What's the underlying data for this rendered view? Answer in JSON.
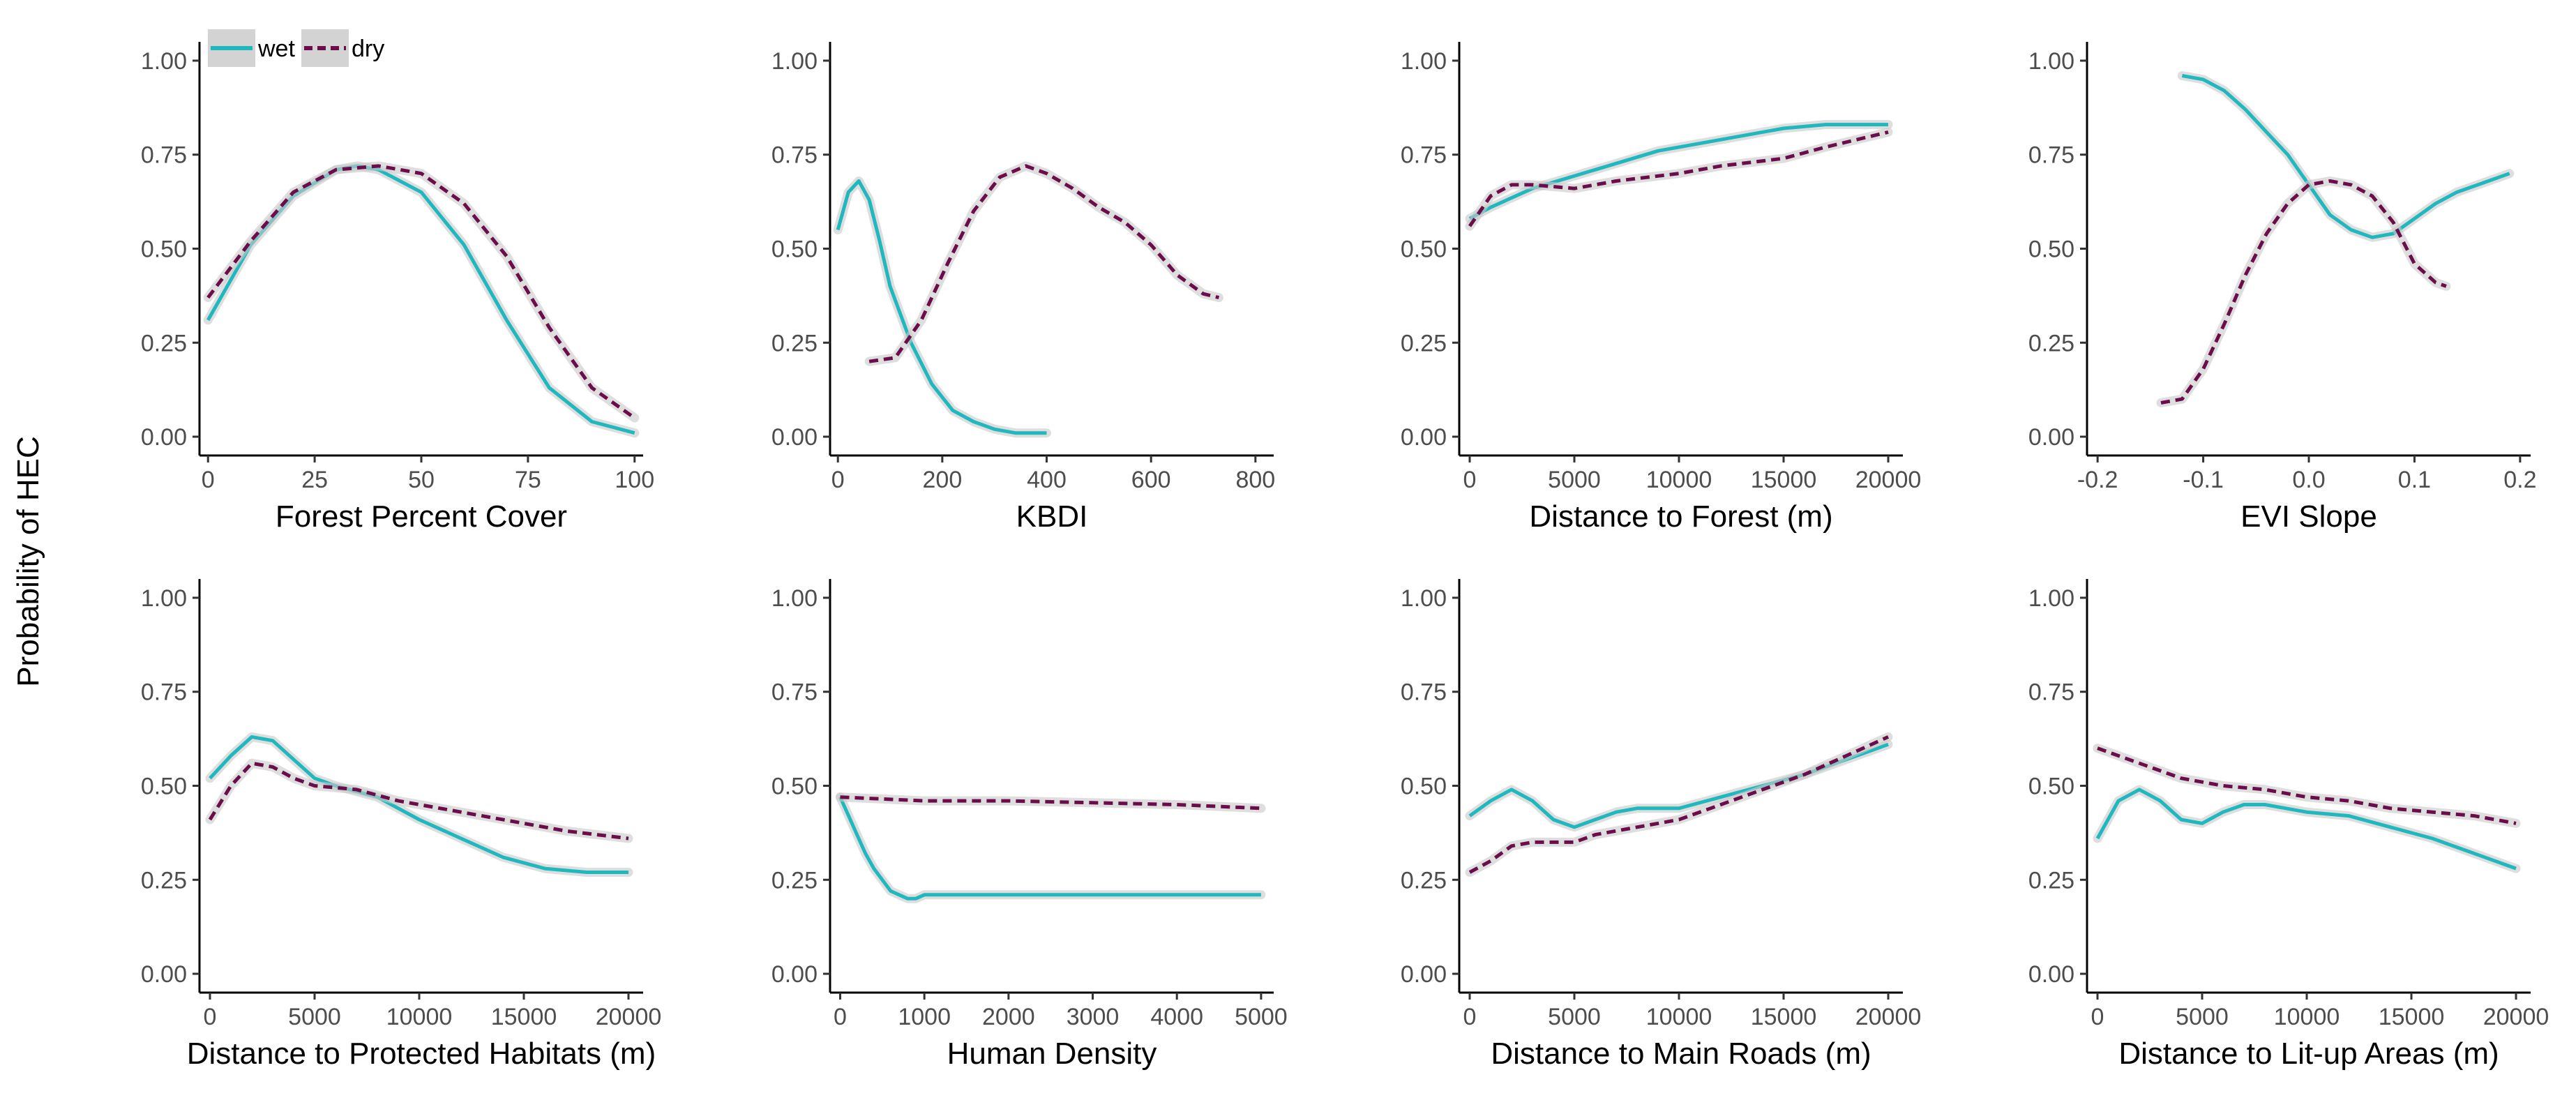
{
  "colors": {
    "wet": "#20b8bf",
    "dry": "#6b0d4a",
    "ribbon": "#c8c8c8"
  },
  "shared_ylabel": "Probability of HEC",
  "legend": {
    "placement": "top-left",
    "items": [
      {
        "label": "wet",
        "style": "solid"
      },
      {
        "label": "dry",
        "style": "dashed"
      }
    ]
  },
  "chart_data": [
    {
      "type": "line",
      "xlabel": "Forest Percent Cover",
      "ylabel": "Probability of HEC",
      "xlim": [
        -2,
        102
      ],
      "ylim": [
        -0.05,
        1.05
      ],
      "xticks": [
        0,
        25,
        50,
        75,
        100
      ],
      "xtick_labels": [
        "0",
        "25",
        "50",
        "75",
        "100"
      ],
      "yticks": [
        0,
        0.25,
        0.5,
        0.75,
        1
      ],
      "ytick_labels": [
        "0.00",
        "0.25",
        "0.50",
        "0.75",
        "1.00"
      ],
      "series": [
        {
          "name": "wet",
          "style": "solid",
          "x": [
            0,
            10,
            20,
            30,
            35,
            40,
            50,
            60,
            70,
            80,
            90,
            100
          ],
          "y": [
            0.31,
            0.51,
            0.64,
            0.71,
            0.72,
            0.71,
            0.65,
            0.51,
            0.31,
            0.13,
            0.04,
            0.01
          ]
        },
        {
          "name": "dry",
          "style": "dashed",
          "x": [
            0,
            10,
            20,
            30,
            40,
            50,
            60,
            70,
            80,
            90,
            100
          ],
          "y": [
            0.37,
            0.52,
            0.65,
            0.71,
            0.72,
            0.7,
            0.62,
            0.48,
            0.29,
            0.13,
            0.05
          ]
        }
      ]
    },
    {
      "type": "line",
      "xlabel": "KBDI",
      "ylabel": "Probability of HEC",
      "xlim": [
        -15,
        835
      ],
      "ylim": [
        -0.05,
        1.05
      ],
      "xticks": [
        0,
        200,
        400,
        600,
        800
      ],
      "xtick_labels": [
        "0",
        "200",
        "400",
        "600",
        "800"
      ],
      "yticks": [
        0,
        0.25,
        0.5,
        0.75,
        1
      ],
      "ytick_labels": [
        "0.00",
        "0.25",
        "0.50",
        "0.75",
        "1.00"
      ],
      "series": [
        {
          "name": "wet",
          "style": "solid",
          "x": [
            0,
            20,
            40,
            60,
            80,
            100,
            140,
            180,
            220,
            260,
            300,
            340,
            380,
            400
          ],
          "y": [
            0.55,
            0.65,
            0.68,
            0.63,
            0.52,
            0.4,
            0.25,
            0.14,
            0.07,
            0.04,
            0.02,
            0.01,
            0.01,
            0.01
          ]
        },
        {
          "name": "dry",
          "style": "dashed",
          "x": [
            60,
            110,
            160,
            210,
            260,
            310,
            360,
            400,
            450,
            500,
            550,
            600,
            650,
            700,
            730
          ],
          "y": [
            0.2,
            0.21,
            0.31,
            0.46,
            0.6,
            0.69,
            0.72,
            0.7,
            0.66,
            0.61,
            0.57,
            0.51,
            0.43,
            0.38,
            0.37
          ]
        }
      ]
    },
    {
      "type": "line",
      "xlabel": "Distance to Forest (m)",
      "ylabel": "Probability of HEC",
      "xlim": [
        -500,
        20700
      ],
      "ylim": [
        -0.05,
        1.05
      ],
      "xticks": [
        0,
        5000,
        10000,
        15000,
        20000
      ],
      "xtick_labels": [
        "0",
        "5000",
        "10000",
        "15000",
        "20000"
      ],
      "yticks": [
        0,
        0.25,
        0.5,
        0.75,
        1
      ],
      "ytick_labels": [
        "0.00",
        "0.25",
        "0.50",
        "0.75",
        "1.00"
      ],
      "series": [
        {
          "name": "wet",
          "style": "solid",
          "x": [
            0,
            1000,
            3000,
            6000,
            9000,
            12000,
            15000,
            17000,
            20000
          ],
          "y": [
            0.58,
            0.61,
            0.66,
            0.71,
            0.76,
            0.79,
            0.82,
            0.83,
            0.83
          ]
        },
        {
          "name": "dry",
          "style": "dashed",
          "x": [
            0,
            1000,
            2000,
            3000,
            5000,
            7000,
            10000,
            12000,
            15000,
            17000,
            20000
          ],
          "y": [
            0.56,
            0.64,
            0.67,
            0.67,
            0.66,
            0.68,
            0.7,
            0.72,
            0.74,
            0.77,
            0.81
          ]
        }
      ]
    },
    {
      "type": "line",
      "xlabel": "EVI Slope",
      "ylabel": "Probability of HEC",
      "xlim": [
        -0.21,
        0.21
      ],
      "ylim": [
        -0.05,
        1.05
      ],
      "xticks": [
        -0.2,
        -0.1,
        0,
        0.1,
        0.2
      ],
      "xtick_labels": [
        "-0.2",
        "-0.1",
        "0.0",
        "0.1",
        "0.2"
      ],
      "yticks": [
        0,
        0.25,
        0.5,
        0.75,
        1
      ],
      "ytick_labels": [
        "0.00",
        "0.25",
        "0.50",
        "0.75",
        "1.00"
      ],
      "series": [
        {
          "name": "wet",
          "style": "solid",
          "x": [
            -0.12,
            -0.1,
            -0.08,
            -0.06,
            -0.04,
            -0.02,
            0,
            0.02,
            0.04,
            0.06,
            0.08,
            0.1,
            0.12,
            0.14,
            0.16,
            0.19
          ],
          "y": [
            0.96,
            0.95,
            0.92,
            0.87,
            0.81,
            0.75,
            0.67,
            0.59,
            0.55,
            0.53,
            0.54,
            0.58,
            0.62,
            0.65,
            0.67,
            0.7
          ]
        },
        {
          "name": "dry",
          "style": "dashed",
          "x": [
            -0.14,
            -0.12,
            -0.1,
            -0.08,
            -0.06,
            -0.04,
            -0.02,
            0,
            0.02,
            0.04,
            0.06,
            0.08,
            0.1,
            0.12,
            0.13
          ],
          "y": [
            0.09,
            0.1,
            0.18,
            0.3,
            0.43,
            0.54,
            0.62,
            0.67,
            0.68,
            0.67,
            0.64,
            0.57,
            0.46,
            0.41,
            0.4
          ]
        }
      ]
    },
    {
      "type": "line",
      "xlabel": "Distance to Protected Habitats (m)",
      "ylabel": "Probability of HEC",
      "xlim": [
        -500,
        20700
      ],
      "ylim": [
        -0.05,
        1.05
      ],
      "xticks": [
        0,
        5000,
        10000,
        15000,
        20000
      ],
      "xtick_labels": [
        "0",
        "5000",
        "10000",
        "15000",
        "20000"
      ],
      "yticks": [
        0,
        0.25,
        0.5,
        0.75,
        1
      ],
      "ytick_labels": [
        "0.00",
        "0.25",
        "0.50",
        "0.75",
        "1.00"
      ],
      "series": [
        {
          "name": "wet",
          "style": "solid",
          "x": [
            0,
            1000,
            2000,
            3000,
            4000,
            5000,
            6000,
            8000,
            10000,
            12000,
            14000,
            16000,
            18000,
            20000
          ],
          "y": [
            0.52,
            0.58,
            0.63,
            0.62,
            0.57,
            0.52,
            0.5,
            0.47,
            0.41,
            0.36,
            0.31,
            0.28,
            0.27,
            0.27
          ]
        },
        {
          "name": "dry",
          "style": "dashed",
          "x": [
            0,
            1000,
            2000,
            3000,
            4000,
            5000,
            7000,
            9000,
            11000,
            13000,
            15000,
            17000,
            20000
          ],
          "y": [
            0.41,
            0.5,
            0.56,
            0.55,
            0.52,
            0.5,
            0.49,
            0.46,
            0.44,
            0.42,
            0.4,
            0.38,
            0.36
          ]
        }
      ]
    },
    {
      "type": "line",
      "xlabel": "Human Density",
      "ylabel": "Probability of HEC",
      "xlim": [
        -120,
        5150
      ],
      "ylim": [
        -0.05,
        1.05
      ],
      "xticks": [
        0,
        1000,
        2000,
        3000,
        4000,
        5000
      ],
      "xtick_labels": [
        "0",
        "1000",
        "2000",
        "3000",
        "4000",
        "5000"
      ],
      "yticks": [
        0,
        0.25,
        0.5,
        0.75,
        1
      ],
      "ytick_labels": [
        "0.00",
        "0.25",
        "0.50",
        "0.75",
        "1.00"
      ],
      "series": [
        {
          "name": "wet",
          "style": "solid",
          "x": [
            0,
            100,
            200,
            300,
            400,
            500,
            600,
            700,
            800,
            900,
            1000,
            2000,
            3000,
            4000,
            5000
          ],
          "y": [
            0.47,
            0.42,
            0.37,
            0.32,
            0.28,
            0.25,
            0.22,
            0.21,
            0.2,
            0.2,
            0.21,
            0.21,
            0.21,
            0.21,
            0.21
          ]
        },
        {
          "name": "dry",
          "style": "dashed",
          "x": [
            0,
            1000,
            2000,
            3000,
            4000,
            5000
          ],
          "y": [
            0.47,
            0.46,
            0.46,
            0.455,
            0.45,
            0.44
          ]
        }
      ]
    },
    {
      "type": "line",
      "xlabel": "Distance to Main Roads (m)",
      "ylabel": "Probability of HEC",
      "xlim": [
        -500,
        20700
      ],
      "ylim": [
        -0.05,
        1.05
      ],
      "xticks": [
        0,
        5000,
        10000,
        15000,
        20000
      ],
      "xtick_labels": [
        "0",
        "5000",
        "10000",
        "15000",
        "20000"
      ],
      "yticks": [
        0,
        0.25,
        0.5,
        0.75,
        1
      ],
      "ytick_labels": [
        "0.00",
        "0.25",
        "0.50",
        "0.75",
        "1.00"
      ],
      "series": [
        {
          "name": "wet",
          "style": "solid",
          "x": [
            0,
            1000,
            2000,
            3000,
            4000,
            5000,
            6000,
            7000,
            8000,
            10000,
            12000,
            14000,
            16000,
            18000,
            20000
          ],
          "y": [
            0.42,
            0.46,
            0.49,
            0.46,
            0.41,
            0.39,
            0.41,
            0.43,
            0.44,
            0.44,
            0.47,
            0.5,
            0.53,
            0.57,
            0.61
          ]
        },
        {
          "name": "dry",
          "style": "dashed",
          "x": [
            0,
            1000,
            2000,
            3000,
            4000,
            5000,
            6000,
            8000,
            10000,
            12000,
            14000,
            16000,
            18000,
            20000
          ],
          "y": [
            0.27,
            0.3,
            0.34,
            0.35,
            0.35,
            0.35,
            0.37,
            0.39,
            0.41,
            0.45,
            0.49,
            0.53,
            0.58,
            0.63
          ]
        }
      ]
    },
    {
      "type": "line",
      "xlabel": "Distance to Lit-up Areas (m)",
      "ylabel": "Probability of HEC",
      "xlim": [
        -500,
        20700
      ],
      "ylim": [
        -0.05,
        1.05
      ],
      "xticks": [
        0,
        5000,
        10000,
        15000,
        20000
      ],
      "xtick_labels": [
        "0",
        "5000",
        "10000",
        "15000",
        "20000"
      ],
      "yticks": [
        0,
        0.25,
        0.5,
        0.75,
        1
      ],
      "ytick_labels": [
        "0.00",
        "0.25",
        "0.50",
        "0.75",
        "1.00"
      ],
      "series": [
        {
          "name": "wet",
          "style": "solid",
          "x": [
            0,
            1000,
            2000,
            3000,
            4000,
            5000,
            6000,
            7000,
            8000,
            10000,
            12000,
            14000,
            16000,
            18000,
            20000
          ],
          "y": [
            0.36,
            0.46,
            0.49,
            0.46,
            0.41,
            0.4,
            0.43,
            0.45,
            0.45,
            0.43,
            0.42,
            0.39,
            0.36,
            0.32,
            0.28
          ]
        },
        {
          "name": "dry",
          "style": "dashed",
          "x": [
            0,
            2000,
            4000,
            6000,
            8000,
            10000,
            12000,
            14000,
            16000,
            18000,
            20000
          ],
          "y": [
            0.6,
            0.56,
            0.52,
            0.5,
            0.49,
            0.47,
            0.46,
            0.44,
            0.43,
            0.42,
            0.4
          ]
        }
      ]
    }
  ]
}
